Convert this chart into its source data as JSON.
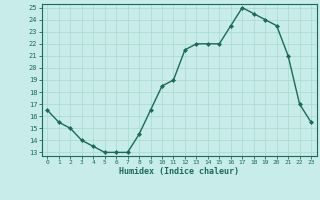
{
  "x": [
    0,
    1,
    2,
    3,
    4,
    5,
    6,
    7,
    8,
    9,
    10,
    11,
    12,
    13,
    14,
    15,
    16,
    17,
    18,
    19,
    20,
    21,
    22,
    23
  ],
  "y": [
    16.5,
    15.5,
    15.0,
    14.0,
    13.5,
    13.0,
    13.0,
    13.0,
    14.5,
    16.5,
    18.5,
    19.0,
    21.5,
    22.0,
    22.0,
    22.0,
    23.5,
    25.0,
    24.5,
    24.0,
    23.5,
    21.0,
    17.0,
    15.5
  ],
  "xlabel": "Humidex (Indice chaleur)",
  "ylim": [
    13,
    25
  ],
  "xlim": [
    -0.5,
    23.5
  ],
  "yticks": [
    13,
    14,
    15,
    16,
    17,
    18,
    19,
    20,
    21,
    22,
    23,
    24,
    25
  ],
  "xticks": [
    0,
    1,
    2,
    3,
    4,
    5,
    6,
    7,
    8,
    9,
    10,
    11,
    12,
    13,
    14,
    15,
    16,
    17,
    18,
    19,
    20,
    21,
    22,
    23
  ],
  "line_color": "#1a6b5a",
  "marker_color": "#1a6b5a",
  "bg_color": "#c8ecea",
  "grid_color": "#a8d8d0",
  "xlabel_color": "#1a6b5a",
  "tick_color": "#1a6b5a",
  "spine_color": "#1a6b5a"
}
